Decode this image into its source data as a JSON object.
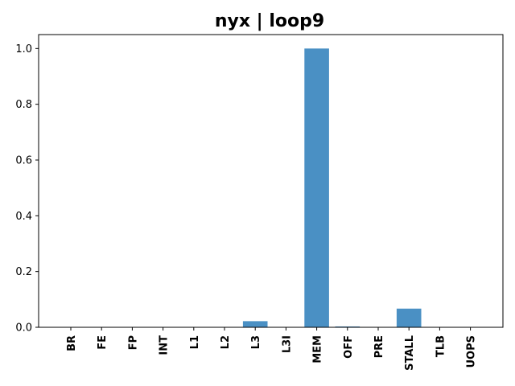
{
  "chart_data": {
    "type": "bar",
    "title": "nyx | loop9",
    "xlabel": "",
    "ylabel": "",
    "categories": [
      "BR",
      "FE",
      "FP",
      "INT",
      "L1",
      "L2",
      "L3",
      "L3I",
      "MEM",
      "OFF",
      "PRE",
      "STALL",
      "TLB",
      "UOPS"
    ],
    "values": [
      0,
      0,
      0,
      0,
      0,
      0,
      0.022,
      0,
      1.0,
      0.003,
      0,
      0.067,
      0,
      0
    ],
    "ylim": [
      0,
      1.05
    ],
    "yticks": [
      0.0,
      0.2,
      0.4,
      0.6,
      0.8,
      1.0
    ],
    "ytick_labels": [
      "0.0",
      "0.2",
      "0.4",
      "0.6",
      "0.8",
      "1.0"
    ],
    "bar_color": "#4a90c4",
    "grid": false,
    "legend": "none"
  }
}
